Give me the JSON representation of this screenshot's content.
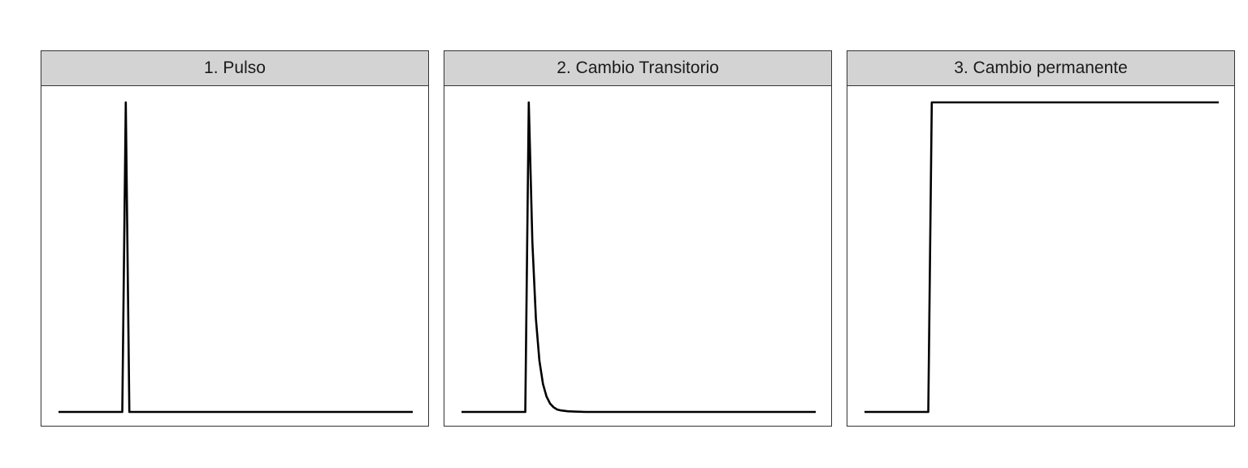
{
  "chart_data": [
    {
      "type": "line",
      "title": "1. Pulso",
      "xlabel": "",
      "ylabel": "",
      "xlim": [
        0,
        100
      ],
      "ylim": [
        0,
        1
      ],
      "grid": false,
      "line_color": "#000000",
      "x": [
        0,
        18,
        19,
        20,
        100
      ],
      "y": [
        0,
        0,
        1,
        0,
        0
      ]
    },
    {
      "type": "line",
      "title": "2. Cambio Transitorio",
      "xlabel": "",
      "ylabel": "",
      "xlim": [
        0,
        100
      ],
      "ylim": [
        0,
        1
      ],
      "grid": false,
      "line_color": "#000000",
      "x": [
        0,
        18,
        19,
        20,
        21,
        22,
        23,
        24,
        25,
        26,
        27,
        28,
        30,
        32,
        35,
        40,
        100
      ],
      "y": [
        0,
        0,
        1,
        0.55,
        0.3,
        0.165,
        0.09,
        0.05,
        0.027,
        0.015,
        0.008,
        0.005,
        0.002,
        0.001,
        0,
        0,
        0
      ]
    },
    {
      "type": "line",
      "title": "3. Cambio permanente",
      "xlabel": "",
      "ylabel": "",
      "xlim": [
        0,
        100
      ],
      "ylim": [
        0,
        1
      ],
      "grid": false,
      "line_color": "#000000",
      "x": [
        0,
        18,
        19,
        100
      ],
      "y": [
        0,
        0,
        1,
        1
      ]
    }
  ]
}
